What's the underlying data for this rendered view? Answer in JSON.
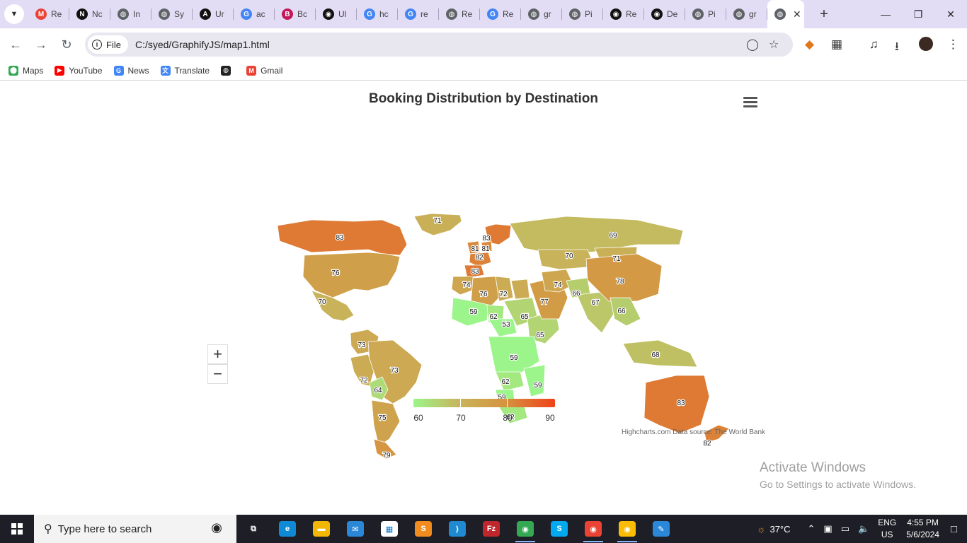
{
  "browser": {
    "tabs": [
      {
        "label": "Re",
        "icon": "gmail-icon",
        "color": "#ea4335",
        "glyph": "M"
      },
      {
        "label": "Nc",
        "icon": "notion-icon",
        "color": "#111111",
        "glyph": "N"
      },
      {
        "label": "In",
        "icon": "globe-icon",
        "color": "#5f6368",
        "glyph": "◍"
      },
      {
        "label": "Sy",
        "icon": "globe-icon",
        "color": "#5f6368",
        "glyph": "◍"
      },
      {
        "label": "Ur",
        "icon": "app-icon",
        "color": "#111111",
        "glyph": "A"
      },
      {
        "label": "ac",
        "icon": "google-icon",
        "color": "#4285f4",
        "glyph": "G"
      },
      {
        "label": "Bc",
        "icon": "app-icon",
        "color": "#c2185b",
        "glyph": "B"
      },
      {
        "label": "Ul",
        "icon": "github-icon",
        "color": "#111111",
        "glyph": "◉"
      },
      {
        "label": "hc",
        "icon": "google-icon",
        "color": "#4285f4",
        "glyph": "G"
      },
      {
        "label": "re",
        "icon": "google-icon",
        "color": "#4285f4",
        "glyph": "G"
      },
      {
        "label": "Re",
        "icon": "globe-icon",
        "color": "#5f6368",
        "glyph": "◍"
      },
      {
        "label": "Re",
        "icon": "google-icon",
        "color": "#4285f4",
        "glyph": "G"
      },
      {
        "label": "gr",
        "icon": "globe-icon",
        "color": "#5f6368",
        "glyph": "◍"
      },
      {
        "label": "Pi",
        "icon": "globe-icon",
        "color": "#5f6368",
        "glyph": "◍"
      },
      {
        "label": "Re",
        "icon": "github-icon",
        "color": "#111111",
        "glyph": "◉"
      },
      {
        "label": "De",
        "icon": "github-icon",
        "color": "#111111",
        "glyph": "◉"
      },
      {
        "label": "Pi",
        "icon": "globe-icon",
        "color": "#5f6368",
        "glyph": "◍"
      },
      {
        "label": "gr",
        "icon": "globe-icon",
        "color": "#5f6368",
        "glyph": "◍"
      }
    ],
    "url_chip": "File",
    "url": "C:/syed/GraphifyJS/map1.html",
    "bookmarks": [
      {
        "label": "Maps",
        "icon": "maps-icon",
        "color": "#34a853",
        "glyph": "⬤"
      },
      {
        "label": "YouTube",
        "icon": "youtube-icon",
        "color": "#ff0000",
        "glyph": "▶"
      },
      {
        "label": "News",
        "icon": "news-icon",
        "color": "#4285f4",
        "glyph": "G"
      },
      {
        "label": "Translate",
        "icon": "translate-icon",
        "color": "#4285f4",
        "glyph": "文"
      },
      {
        "label": "",
        "icon": "globe-icon",
        "color": "#222222",
        "glyph": "◍"
      },
      {
        "label": "Gmail",
        "icon": "gmail-icon",
        "color": "#ea4335",
        "glyph": "M"
      }
    ]
  },
  "chart_data": {
    "type": "map",
    "title": "Booking Distribution by Destination",
    "colorAxis": {
      "min": 60,
      "max": 90,
      "stops": [
        "#9bf58a",
        "#c8b35a",
        "#d6923f",
        "#f0411a"
      ],
      "ticks": [
        "60",
        "70",
        "80",
        "90"
      ]
    },
    "credits": "Highcharts.com Data source: The World Bank",
    "regions": [
      {
        "name": "Greenland",
        "value": 71
      },
      {
        "name": "Canada",
        "value": 83
      },
      {
        "name": "United States",
        "value": 76
      },
      {
        "name": "Mexico",
        "value": 70
      },
      {
        "name": "Colombia",
        "value": 73
      },
      {
        "name": "Brazil",
        "value": 73
      },
      {
        "name": "Peru",
        "value": 72
      },
      {
        "name": "Bolivia",
        "value": 64
      },
      {
        "name": "Argentina",
        "value": 75
      },
      {
        "name": "Chile (south)",
        "value": 79
      },
      {
        "name": "Norway/Sweden",
        "value": 83
      },
      {
        "name": "United Kingdom",
        "value": 81
      },
      {
        "name": "Netherlands",
        "value": 81
      },
      {
        "name": "France",
        "value": 82
      },
      {
        "name": "Spain",
        "value": 83
      },
      {
        "name": "Morocco",
        "value": 74
      },
      {
        "name": "Algeria",
        "value": 76
      },
      {
        "name": "Libya",
        "value": 72
      },
      {
        "name": "Egypt",
        "value": 72
      },
      {
        "name": "Mali",
        "value": 59
      },
      {
        "name": "Niger",
        "value": 62
      },
      {
        "name": "Nigeria",
        "value": 53
      },
      {
        "name": "Sudan",
        "value": 65
      },
      {
        "name": "Ethiopia",
        "value": 65
      },
      {
        "name": "Congo DR",
        "value": 59
      },
      {
        "name": "Angola",
        "value": 62
      },
      {
        "name": "Mozambique",
        "value": 59
      },
      {
        "name": "Namibia",
        "value": 59
      },
      {
        "name": "South Africa",
        "value": 62
      },
      {
        "name": "Saudi Arabia",
        "value": 77
      },
      {
        "name": "Iran",
        "value": 74
      },
      {
        "name": "Afghanistan",
        "value": 66
      },
      {
        "name": "India",
        "value": 67
      },
      {
        "name": "Russia",
        "value": 69
      },
      {
        "name": "Kazakhstan",
        "value": 70
      },
      {
        "name": "Mongolia",
        "value": 71
      },
      {
        "name": "China",
        "value": 78
      },
      {
        "name": "Myanmar/Thailand",
        "value": 66
      },
      {
        "name": "Indonesia",
        "value": 68
      },
      {
        "name": "Australia",
        "value": 83
      },
      {
        "name": "New Zealand",
        "value": 82
      }
    ]
  },
  "page": {
    "zoom_in": "+",
    "zoom_out": "−",
    "activate_title": "Activate Windows",
    "activate_sub": "Go to Settings to activate Windows."
  },
  "taskbar": {
    "search_placeholder": "Type here to search",
    "weather": "37°C",
    "lang_top": "ENG",
    "lang_bottom": "US",
    "time": "4:55 PM",
    "date": "5/6/2024",
    "apps": [
      {
        "name": "task-view-icon",
        "color": "#1e1e26",
        "glyph": "⧉"
      },
      {
        "name": "edge-icon",
        "color": "#0f8ad6",
        "glyph": "e"
      },
      {
        "name": "file-explorer-icon",
        "color": "#f2b705",
        "glyph": "▬"
      },
      {
        "name": "mail-icon",
        "color": "#2b88d8",
        "glyph": "✉"
      },
      {
        "name": "store-icon",
        "color": "#ffffff",
        "glyph": "▦"
      },
      {
        "name": "sublime-icon",
        "color": "#f28c1e",
        "glyph": "S"
      },
      {
        "name": "vscode-icon",
        "color": "#1f8ad2",
        "glyph": "⟩"
      },
      {
        "name": "filezilla-icon",
        "color": "#c0272d",
        "glyph": "Fz"
      },
      {
        "name": "chrome-icon",
        "color": "#34a853",
        "glyph": "◉"
      },
      {
        "name": "skype-icon",
        "color": "#00a9f0",
        "glyph": "S"
      },
      {
        "name": "chrome-profile-icon",
        "color": "#ea4335",
        "glyph": "◉"
      },
      {
        "name": "chrome-profile2-icon",
        "color": "#fbbc05",
        "glyph": "◉"
      },
      {
        "name": "paint-icon",
        "color": "#2b88d8",
        "glyph": "✎"
      }
    ]
  }
}
